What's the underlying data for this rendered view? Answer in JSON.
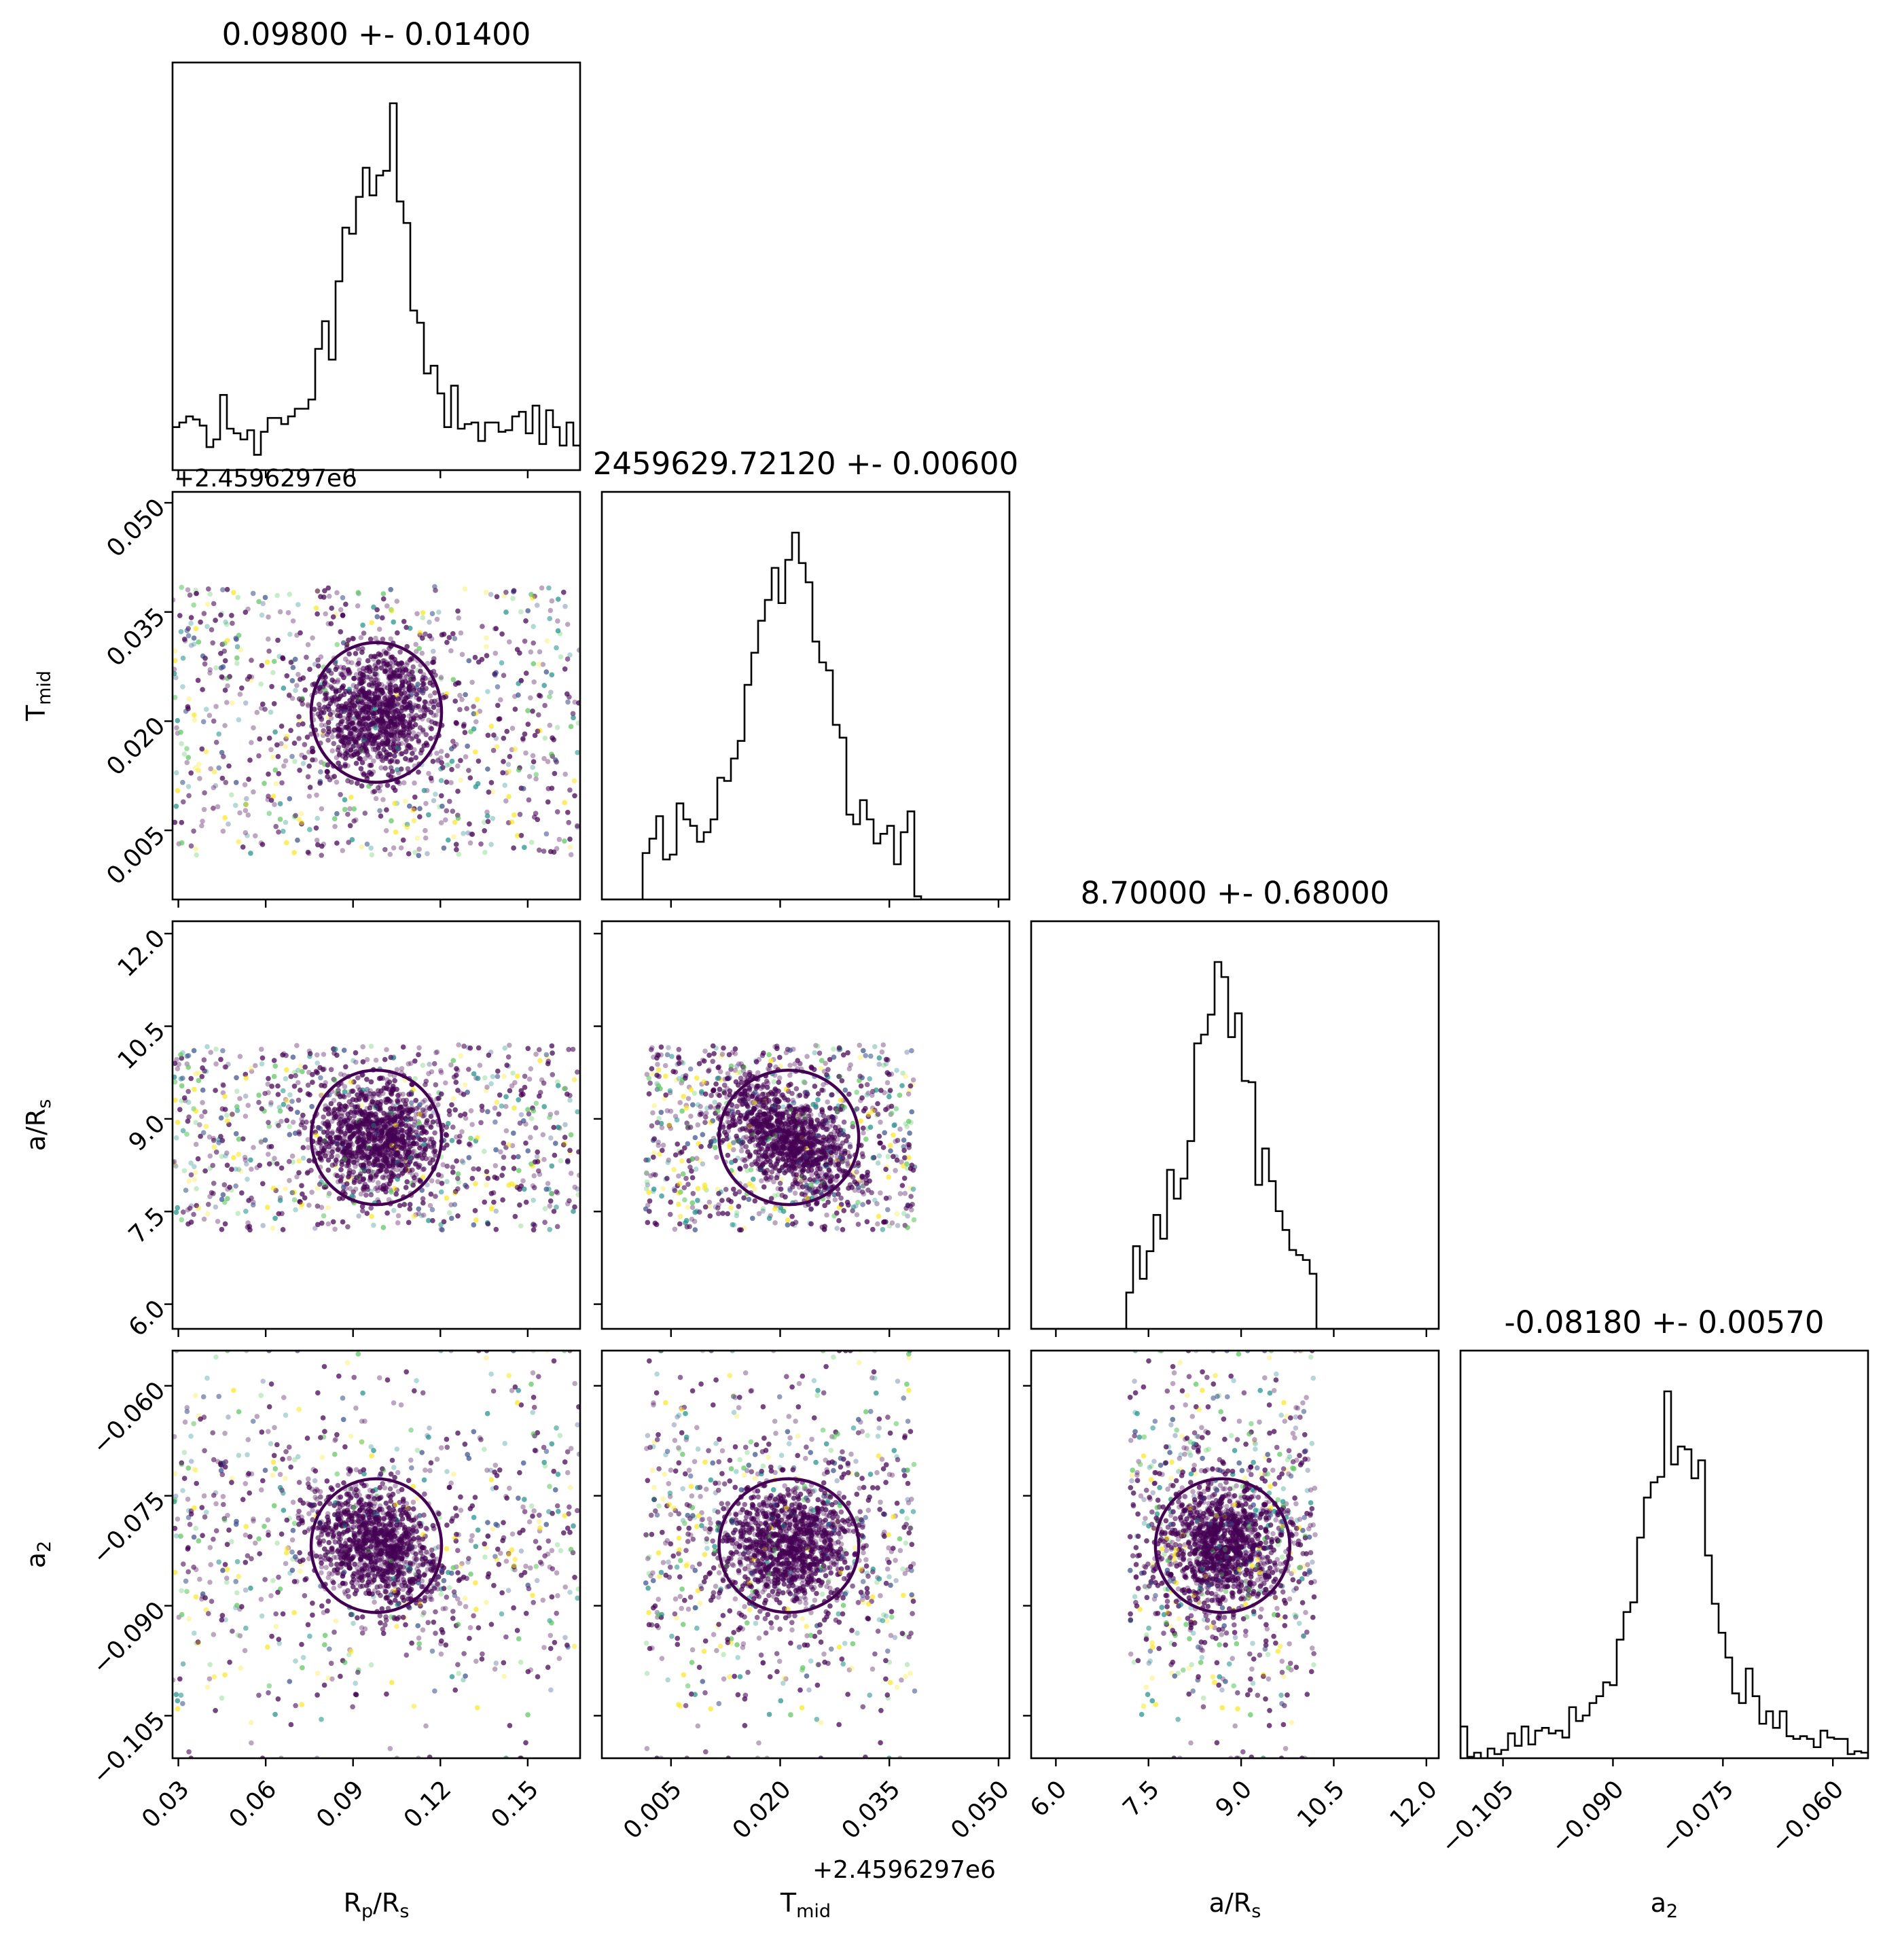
{
  "chart_data": {
    "type": "scatter",
    "subtype": "corner_plot",
    "parameters": [
      {
        "key": "rp",
        "label": "R",
        "sub": "p",
        "label2": "/R",
        "sub2": "s",
        "mean": 0.098,
        "std": 0.014,
        "title": "0.09800 +- 0.01400",
        "range": [
          0.028,
          0.168
        ],
        "ticks": [
          "0.03",
          "0.06",
          "0.09",
          "0.12",
          "0.15"
        ],
        "tick_values": [
          0.03,
          0.06,
          0.09,
          0.12,
          0.15
        ]
      },
      {
        "key": "tmid",
        "label": "T",
        "sub": "mid",
        "label2": "",
        "sub2": "",
        "mean": 0.0212,
        "std": 0.006,
        "title": "2459629.72120 +- 0.00600",
        "offset_text": "+2.4596297e6",
        "range": [
          -0.0045,
          0.0515
        ],
        "ticks": [
          "0.005",
          "0.020",
          "0.035",
          "0.050"
        ],
        "tick_values": [
          0.005,
          0.02,
          0.035,
          0.05
        ]
      },
      {
        "key": "ars",
        "label": "a/R",
        "sub": "s",
        "label2": "",
        "sub2": "",
        "mean": 8.7,
        "std": 0.68,
        "title": "8.70000 +- 0.68000",
        "range": [
          5.6,
          12.2
        ],
        "ticks": [
          "6.0",
          "7.5",
          "9.0",
          "10.5",
          "12.0"
        ],
        "tick_values": [
          6.0,
          7.5,
          9.0,
          10.5,
          12.0
        ]
      },
      {
        "key": "a2",
        "label": "a",
        "sub": "2",
        "label2": "",
        "sub2": "",
        "mean": -0.0818,
        "std": 0.0057,
        "title": "-0.08180 +- 0.00570",
        "range": [
          -0.1108,
          -0.0552
        ],
        "ticks": [
          "−0.105",
          "−0.090",
          "−0.075",
          "−0.060"
        ],
        "tick_values": [
          -0.105,
          -0.09,
          -0.075,
          -0.06
        ]
      }
    ],
    "sample_bounds": {
      "rp": [
        0.028,
        0.168
      ],
      "tmid": [
        0.0015,
        0.0385
      ],
      "ars": [
        7.2,
        10.2
      ],
      "a2": [
        -0.1108,
        -0.0552
      ]
    },
    "colors": {
      "points_main": "#440154",
      "points_alt": [
        "#21918c",
        "#fde725",
        "#5ec962",
        "#3b528b"
      ],
      "contour": "#440154",
      "hist": "#000000"
    },
    "grid": false,
    "legend": "none"
  }
}
